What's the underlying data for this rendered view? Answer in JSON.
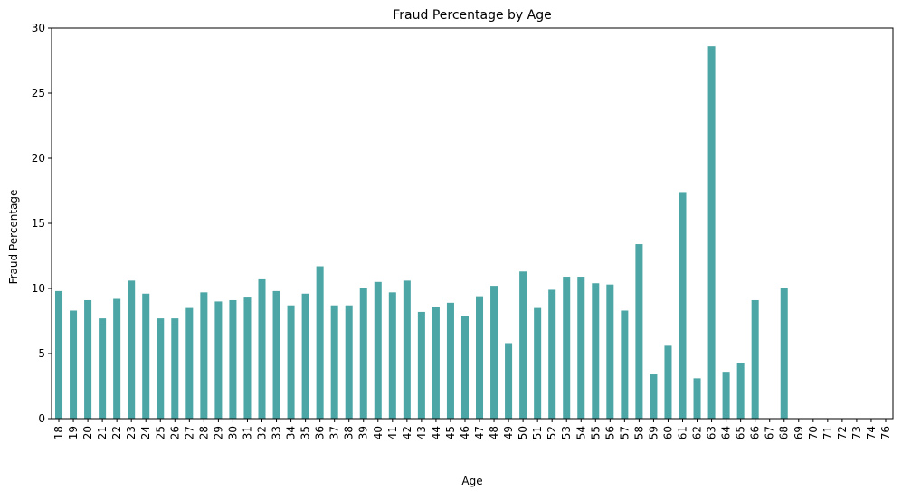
{
  "chart_data": {
    "type": "bar",
    "title": "Fraud Percentage by Age",
    "xlabel": "Age",
    "ylabel": "Fraud Percentage",
    "ylim": [
      0,
      30
    ],
    "yticks": [
      0,
      5,
      10,
      15,
      20,
      25,
      30
    ],
    "grid": false,
    "bar_color": "#4ca6a6",
    "categories": [
      "18",
      "19",
      "20",
      "21",
      "22",
      "23",
      "24",
      "25",
      "26",
      "27",
      "28",
      "29",
      "30",
      "31",
      "32",
      "33",
      "34",
      "35",
      "36",
      "37",
      "38",
      "39",
      "40",
      "41",
      "42",
      "43",
      "44",
      "45",
      "46",
      "47",
      "48",
      "49",
      "50",
      "51",
      "52",
      "53",
      "54",
      "55",
      "56",
      "57",
      "58",
      "59",
      "60",
      "61",
      "62",
      "63",
      "64",
      "65",
      "66",
      "67",
      "68",
      "69",
      "70",
      "71",
      "72",
      "73",
      "74",
      "76"
    ],
    "values": [
      9.8,
      8.3,
      9.1,
      7.7,
      9.2,
      10.6,
      9.6,
      7.7,
      7.7,
      8.5,
      9.7,
      9.0,
      9.1,
      9.3,
      10.7,
      9.8,
      8.7,
      9.6,
      11.7,
      8.7,
      8.7,
      10.0,
      10.5,
      9.7,
      10.6,
      8.2,
      8.6,
      8.9,
      7.9,
      9.4,
      10.2,
      5.8,
      11.3,
      8.5,
      9.9,
      10.9,
      10.9,
      10.4,
      10.3,
      8.3,
      13.4,
      3.4,
      5.6,
      17.4,
      3.1,
      28.6,
      3.6,
      4.3,
      9.1,
      0,
      10.0,
      0,
      0,
      0,
      0,
      0,
      0,
      0
    ]
  }
}
